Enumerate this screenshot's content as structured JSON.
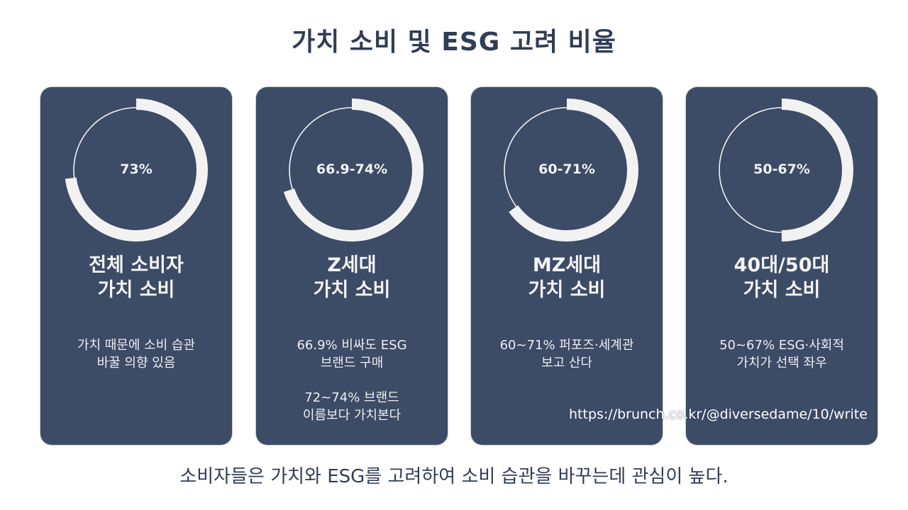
{
  "title": "가치 소비 및 ESG 고려 비율",
  "chart_data": {
    "type": "donut",
    "items": [
      {
        "value_label": "73%",
        "fraction": 0.73,
        "title_lines": [
          "전체 소비자",
          "가치 소비"
        ],
        "desc_blocks": [
          [
            "가치 때문에 소비 습관",
            "바꿀 의향 있음"
          ]
        ]
      },
      {
        "value_label": "66.9-74%",
        "fraction": 0.7,
        "title_lines": [
          "Z세대",
          "가치 소비"
        ],
        "desc_blocks": [
          [
            "66.9% 비싸도 ESG",
            "브랜드 구매"
          ],
          [
            "72~74% 브랜드",
            "이름보다 가치본다"
          ]
        ]
      },
      {
        "value_label": "60-71%",
        "fraction": 0.65,
        "title_lines": [
          "MZ세대",
          "가치 소비"
        ],
        "desc_blocks": [
          [
            "60~71% 퍼포즈·세계관",
            "보고 산다"
          ]
        ]
      },
      {
        "value_label": "50-67%",
        "fraction": 0.5,
        "title_lines": [
          "40대/50대",
          "가치 소비"
        ],
        "desc_blocks": [
          [
            "50~67% ESG·사회적",
            "가치가 선택 좌우"
          ]
        ]
      }
    ]
  },
  "footer": "소비자들은 가치와 ESG를 고려하여 소비 습관을 바꾸는데 관심이 높다.",
  "watermark": "https://brunch.co.kr/@diversedame/10/write",
  "colors": {
    "card_bg": "#3c4b66",
    "ring_fill": "#f2f2f2",
    "title_text": "#2f3d55"
  }
}
